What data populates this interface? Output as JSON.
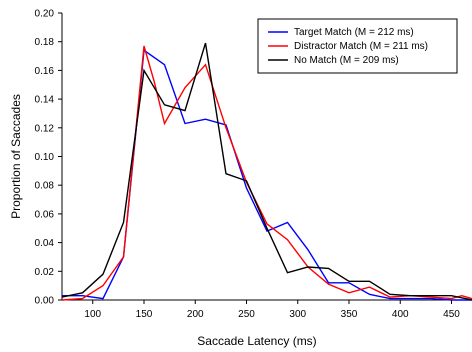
{
  "chart_data": {
    "type": "line",
    "title": "",
    "xlabel": "Saccade Latency (ms)",
    "ylabel": "Proportion of Saccades",
    "xlim": [
      70,
      470
    ],
    "ylim": [
      0,
      0.2
    ],
    "xticks": [
      100,
      150,
      200,
      250,
      300,
      350,
      400,
      450
    ],
    "yticks": [
      0.0,
      0.02,
      0.04,
      0.06,
      0.08,
      0.1,
      0.12,
      0.14,
      0.16,
      0.18,
      0.2
    ],
    "ytick_labels": [
      "0.00",
      "0.02",
      "0.04",
      "0.06",
      "0.08",
      "0.10",
      "0.12",
      "0.14",
      "0.16",
      "0.18",
      "0.20"
    ],
    "grid": false,
    "legend_position": "top-right",
    "series": [
      {
        "name": "Target Match (M = 212 ms)",
        "color": "#0000ff",
        "x": [
          70,
          90,
          110,
          130,
          150,
          170,
          190,
          210,
          230,
          250,
          270,
          290,
          310,
          330,
          350,
          370,
          390,
          410,
          430,
          450,
          470
        ],
        "y": [
          0.003,
          0.003,
          0.001,
          0.03,
          0.174,
          0.164,
          0.123,
          0.126,
          0.122,
          0.078,
          0.048,
          0.054,
          0.035,
          0.012,
          0.012,
          0.004,
          0.001,
          0.001,
          0.001,
          0.0,
          0.0
        ]
      },
      {
        "name": "Distractor Match (M = 211 ms)",
        "color": "#ff0000",
        "x": [
          70,
          90,
          110,
          130,
          150,
          160,
          170,
          190,
          210,
          230,
          250,
          270,
          290,
          310,
          330,
          350,
          370,
          390,
          410,
          430,
          450,
          460,
          470
        ],
        "y": [
          0.0,
          0.001,
          0.01,
          0.03,
          0.177,
          0.152,
          0.123,
          0.148,
          0.164,
          0.12,
          0.082,
          0.053,
          0.042,
          0.023,
          0.011,
          0.005,
          0.009,
          0.002,
          0.003,
          0.002,
          0.001,
          0.003,
          0.001
        ]
      },
      {
        "name": "No Match (M = 209 ms)",
        "color": "#000000",
        "x": [
          70,
          90,
          110,
          130,
          150,
          170,
          190,
          210,
          230,
          250,
          270,
          290,
          310,
          330,
          350,
          370,
          390,
          410,
          430,
          450,
          470
        ],
        "y": [
          0.002,
          0.005,
          0.018,
          0.054,
          0.16,
          0.136,
          0.132,
          0.179,
          0.088,
          0.083,
          0.05,
          0.019,
          0.023,
          0.022,
          0.013,
          0.013,
          0.004,
          0.003,
          0.003,
          0.003,
          0.0
        ]
      }
    ]
  }
}
